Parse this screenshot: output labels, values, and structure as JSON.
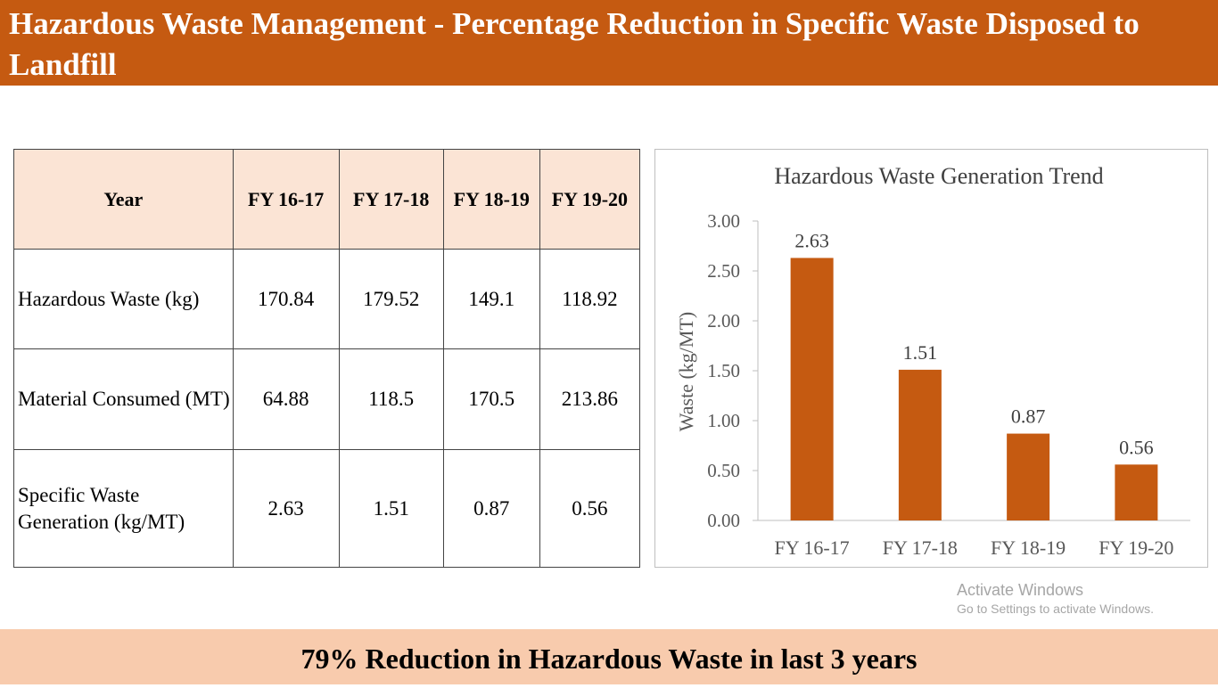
{
  "slide": {
    "title": "Hazardous Waste Management - Percentage Reduction in Specific Waste Disposed to Landfill",
    "footer": "79% Reduction in Hazardous Waste in last 3 years"
  },
  "table": {
    "header": [
      "Year",
      "FY 16-17",
      "FY 17-18",
      "FY 18-19",
      "FY 19-20"
    ],
    "rows": [
      {
        "label": "Hazardous Waste (kg)",
        "values": [
          "170.84",
          "179.52",
          "149.1",
          "118.92"
        ]
      },
      {
        "label": "Material Consumed (MT)",
        "values": [
          "64.88",
          "118.5",
          "170.5",
          "213.86"
        ]
      },
      {
        "label": "Specific Waste Generation (kg/MT)",
        "values": [
          "2.63",
          "1.51",
          "0.87",
          "0.56"
        ]
      }
    ]
  },
  "chart_data": {
    "type": "bar",
    "title": "Hazardous Waste Generation Trend",
    "xlabel": "",
    "ylabel": "Waste (kg/MT)",
    "categories": [
      "FY 16-17",
      "FY 17-18",
      "FY 18-19",
      "FY 19-20"
    ],
    "values": [
      2.63,
      1.51,
      0.87,
      0.56
    ],
    "data_labels": [
      "2.63",
      "1.51",
      "0.87",
      "0.56"
    ],
    "ylim": [
      0,
      3.0
    ],
    "yticks": [
      "0.00",
      "0.50",
      "1.00",
      "1.50",
      "2.00",
      "2.50",
      "3.00"
    ],
    "grid": false,
    "legend": "none",
    "bar_color": "#c55a11"
  },
  "watermark": {
    "title": "Activate Windows",
    "subtitle": "Go to Settings to activate Windows."
  },
  "colors": {
    "title_bar": "#c55a11",
    "table_header": "#fbe4d5",
    "footer_bar": "#f8cbad"
  }
}
